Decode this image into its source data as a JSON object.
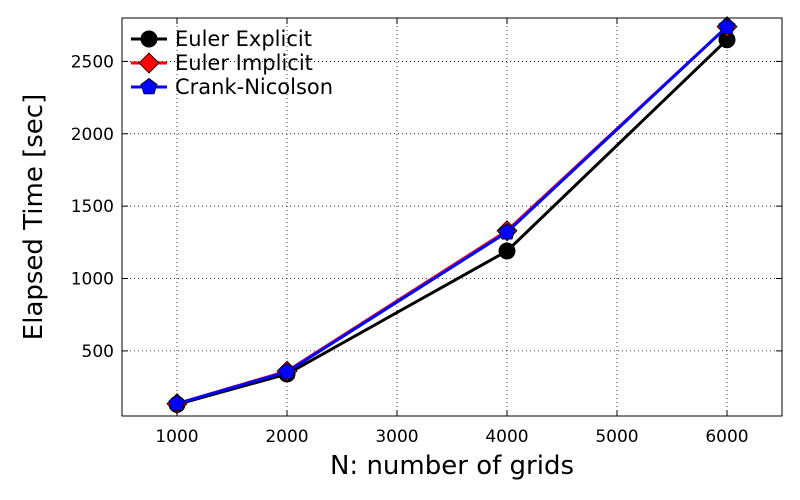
{
  "chart_data": {
    "type": "line",
    "title": "",
    "xlabel": "N: number of grids",
    "ylabel": "Elapsed Time [sec]",
    "x": [
      1000,
      2000,
      4000,
      6000
    ],
    "xlim": [
      500,
      6500
    ],
    "ylim": [
      50,
      2800
    ],
    "xticks": [
      "1000",
      "2000",
      "3000",
      "4000",
      "5000",
      "6000"
    ],
    "yticks": [
      "500",
      "1000",
      "1500",
      "2000",
      "2500"
    ],
    "grid": true,
    "legend_position": "top-left",
    "series": [
      {
        "name": "Euler Explicit",
        "values": [
          130,
          340,
          1190,
          2650
        ],
        "color": "#000000",
        "marker": "circle"
      },
      {
        "name": "Euler Implicit",
        "values": [
          135,
          360,
          1330,
          2740
        ],
        "color": "#ff0000",
        "marker": "diamond"
      },
      {
        "name": "Crank-Nicolson",
        "values": [
          135,
          355,
          1320,
          2740
        ],
        "color": "#0000ff",
        "marker": "pentagon"
      }
    ]
  }
}
